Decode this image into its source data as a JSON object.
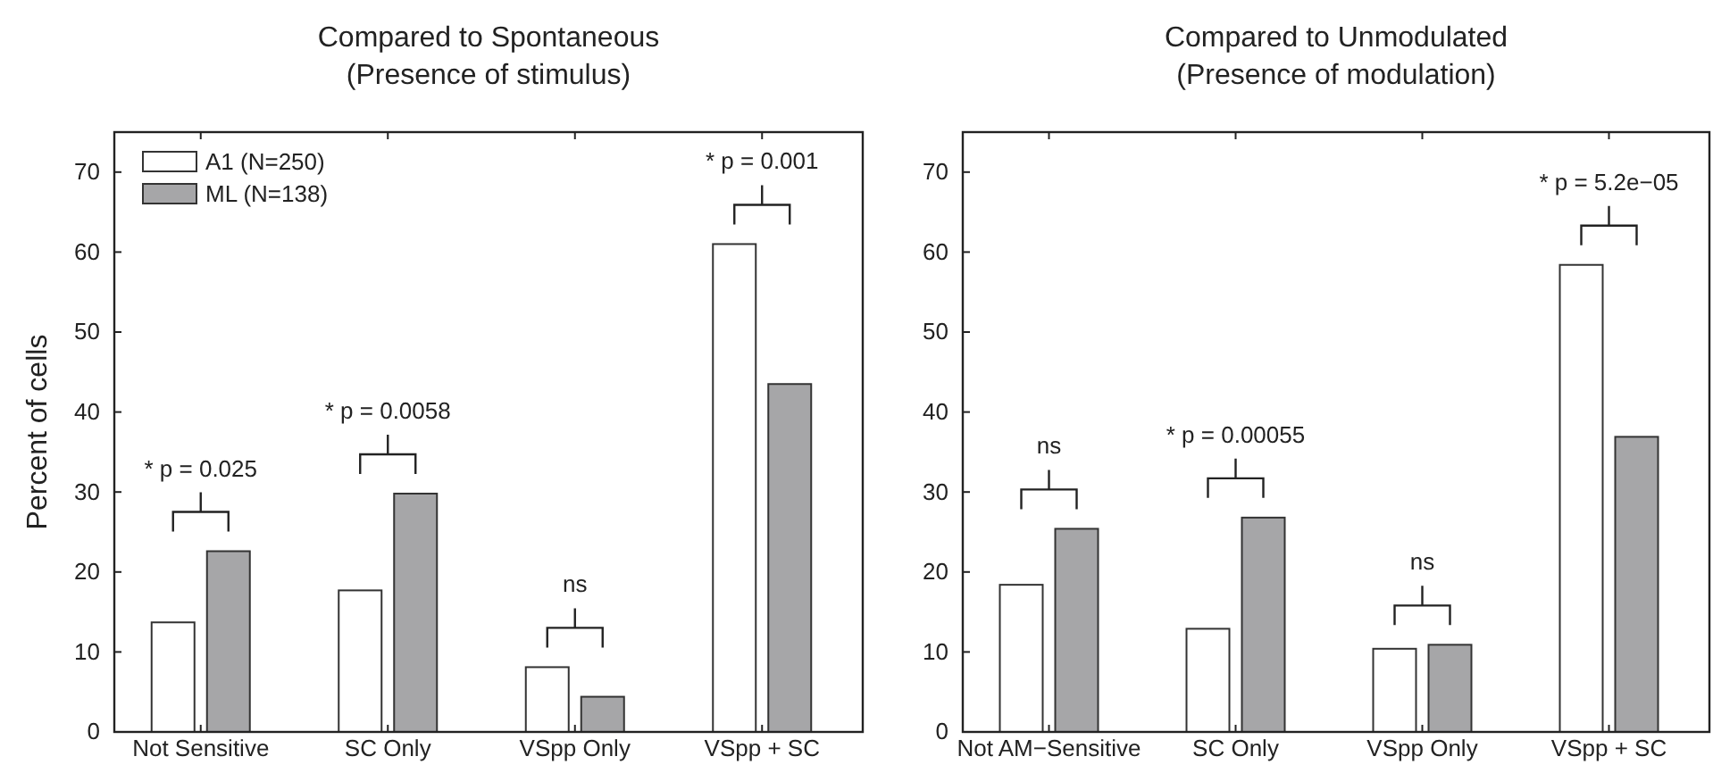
{
  "chart_data": [
    {
      "type": "bar",
      "title": "Compared to Spontaneous",
      "subtitle": "(Presence of stimulus)",
      "ylabel": "Percent of cells",
      "categories": [
        "Not Sensitive",
        "SC Only",
        "VSpp Only",
        "VSpp + SC"
      ],
      "series": [
        {
          "name": "A1 (N=250)",
          "color": "#ffffff",
          "values": [
            13.7,
            17.7,
            8.1,
            61
          ]
        },
        {
          "name": "ML (N=138)",
          "color": "#a6a6a8",
          "values": [
            22.6,
            29.8,
            4.4,
            43.5
          ]
        }
      ],
      "ylim": [
        0,
        75
      ],
      "yticks": [
        0,
        10,
        20,
        30,
        40,
        50,
        60,
        70
      ],
      "legend": "top left",
      "annotations": [
        "* p = 0.025",
        "* p = 0.0058",
        "ns",
        "* p = 0.001"
      ]
    },
    {
      "type": "bar",
      "title": "Compared to Unmodulated",
      "subtitle": "(Presence of modulation)",
      "categories": [
        "Not AM−Sensitive",
        "SC Only",
        "VSpp Only",
        "VSpp + SC"
      ],
      "series": [
        {
          "color": "#ffffff",
          "values": [
            18.4,
            12.9,
            10.4,
            58.4
          ]
        },
        {
          "color": "#a6a6a8",
          "values": [
            25.4,
            26.8,
            10.9,
            36.9
          ]
        }
      ],
      "ylim": [
        0,
        75
      ],
      "yticks": [
        0,
        10,
        20,
        30,
        40,
        50,
        60,
        70
      ],
      "annotations": [
        "ns",
        "* p = 0.00055",
        "ns",
        "* p = 5.2e−05"
      ]
    }
  ]
}
